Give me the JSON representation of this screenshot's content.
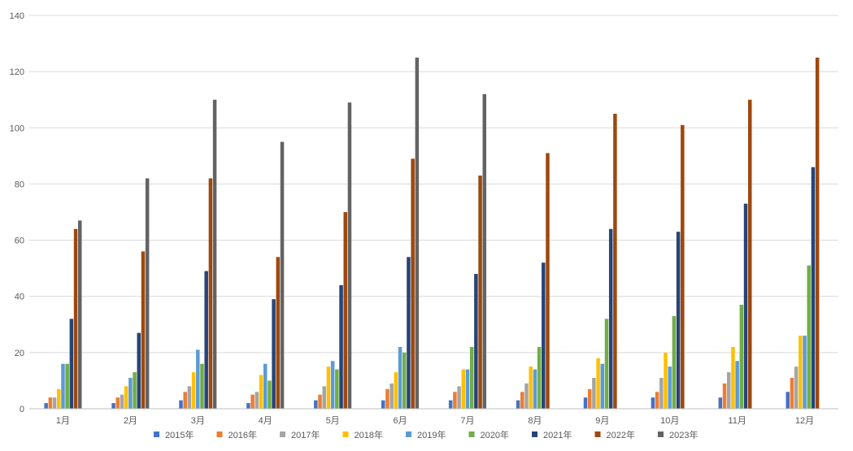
{
  "chart_data": {
    "type": "bar",
    "title": "",
    "xlabel": "",
    "ylabel": "",
    "ylim": [
      0,
      140
    ],
    "yticks": [
      0,
      20,
      40,
      60,
      80,
      100,
      120,
      140
    ],
    "grid": true,
    "legend_position": "bottom",
    "categories": [
      "1月",
      "2月",
      "3月",
      "4月",
      "5月",
      "6月",
      "7月",
      "8月",
      "9月",
      "10月",
      "11月",
      "12月"
    ],
    "series": [
      {
        "name": "2015年",
        "color": "#4472C4",
        "values": [
          2,
          2,
          3,
          2,
          3,
          3,
          3,
          3,
          4,
          4,
          4,
          6
        ]
      },
      {
        "name": "2016年",
        "color": "#ED7D31",
        "values": [
          4,
          4,
          6,
          5,
          5,
          7,
          6,
          6,
          7,
          6,
          9,
          11
        ]
      },
      {
        "name": "2017年",
        "color": "#A5A5A5",
        "values": [
          4,
          5,
          8,
          6,
          8,
          9,
          8,
          9,
          11,
          11,
          13,
          15
        ]
      },
      {
        "name": "2018年",
        "color": "#FFC000",
        "values": [
          7,
          8,
          13,
          12,
          15,
          13,
          14,
          15,
          18,
          20,
          22,
          26
        ]
      },
      {
        "name": "2019年",
        "color": "#5B9BD5",
        "values": [
          16,
          11,
          21,
          16,
          17,
          22,
          14,
          14,
          16,
          15,
          17,
          26
        ]
      },
      {
        "name": "2020年",
        "color": "#70AD47",
        "values": [
          16,
          13,
          16,
          10,
          14,
          20,
          22,
          22,
          32,
          33,
          37,
          51
        ]
      },
      {
        "name": "2021年",
        "color": "#264478",
        "values": [
          32,
          27,
          49,
          39,
          44,
          54,
          48,
          52,
          64,
          63,
          73,
          86
        ]
      },
      {
        "name": "2022年",
        "color": "#9E480E",
        "values": [
          64,
          56,
          82,
          54,
          70,
          89,
          83,
          91,
          105,
          101,
          110,
          125
        ]
      },
      {
        "name": "2023年",
        "color": "#636363",
        "values": [
          67,
          82,
          110,
          95,
          109,
          125,
          112,
          null,
          null,
          null,
          null,
          null
        ]
      }
    ]
  }
}
